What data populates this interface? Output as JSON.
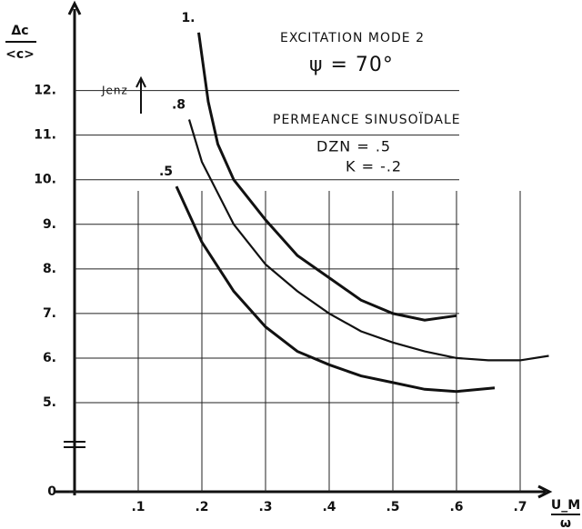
{
  "chart_data": {
    "type": "line",
    "y_label": [
      "Δc",
      "<c>"
    ],
    "x_label": [
      "U_M",
      "ω"
    ],
    "annotations": [
      "EXCITATION MODE 2",
      "ψ = 70°",
      "PERMEANCE SINUSOÏDALE",
      "DZN = .5",
      "K = -.2",
      "Jenz"
    ],
    "xlim": [
      0,
      0.78
    ],
    "ylim": [
      0,
      13.5
    ],
    "y_break": [
      0,
      5
    ],
    "grid": true,
    "xticks": [
      {
        "value": 0.1,
        "label": ".1"
      },
      {
        "value": 0.2,
        "label": ".2"
      },
      {
        "value": 0.3,
        "label": ".3"
      },
      {
        "value": 0.4,
        "label": ".4"
      },
      {
        "value": 0.5,
        "label": ".5"
      },
      {
        "value": 0.6,
        "label": ".6"
      },
      {
        "value": 0.7,
        "label": ".7"
      }
    ],
    "yticks": [
      0,
      {
        "value": 5,
        "label": "5."
      },
      {
        "value": 6,
        "label": "6."
      },
      {
        "value": 7,
        "label": "7."
      },
      {
        "value": 8,
        "label": "8."
      },
      {
        "value": 9,
        "label": "9."
      },
      {
        "value": 10,
        "label": "10."
      },
      {
        "value": 11,
        "label": "11."
      },
      {
        "value": 12,
        "label": "12."
      }
    ],
    "series": [
      {
        "name": "1.",
        "color": "#111",
        "x": [
          0.195,
          0.21,
          0.225,
          0.25,
          0.3,
          0.35,
          0.4,
          0.45,
          0.5,
          0.55,
          0.6
        ],
        "values": [
          13.3,
          11.75,
          10.8,
          10.0,
          9.1,
          8.3,
          7.8,
          7.3,
          7.0,
          6.85,
          6.95
        ]
      },
      {
        "name": ".8",
        "color": "#111",
        "x": [
          0.18,
          0.2,
          0.25,
          0.3,
          0.35,
          0.4,
          0.45,
          0.5,
          0.55,
          0.6,
          0.65,
          0.7,
          0.745
        ],
        "values": [
          11.35,
          10.4,
          9.0,
          8.1,
          7.5,
          7.0,
          6.6,
          6.35,
          6.15,
          6.0,
          5.95,
          5.95,
          6.05
        ]
      },
      {
        "name": ".5",
        "color": "#111",
        "x": [
          0.16,
          0.2,
          0.25,
          0.3,
          0.35,
          0.4,
          0.45,
          0.5,
          0.55,
          0.6,
          0.66
        ],
        "values": [
          9.85,
          8.6,
          7.5,
          6.7,
          6.15,
          5.85,
          5.6,
          5.45,
          5.3,
          5.25,
          5.33
        ]
      }
    ]
  }
}
